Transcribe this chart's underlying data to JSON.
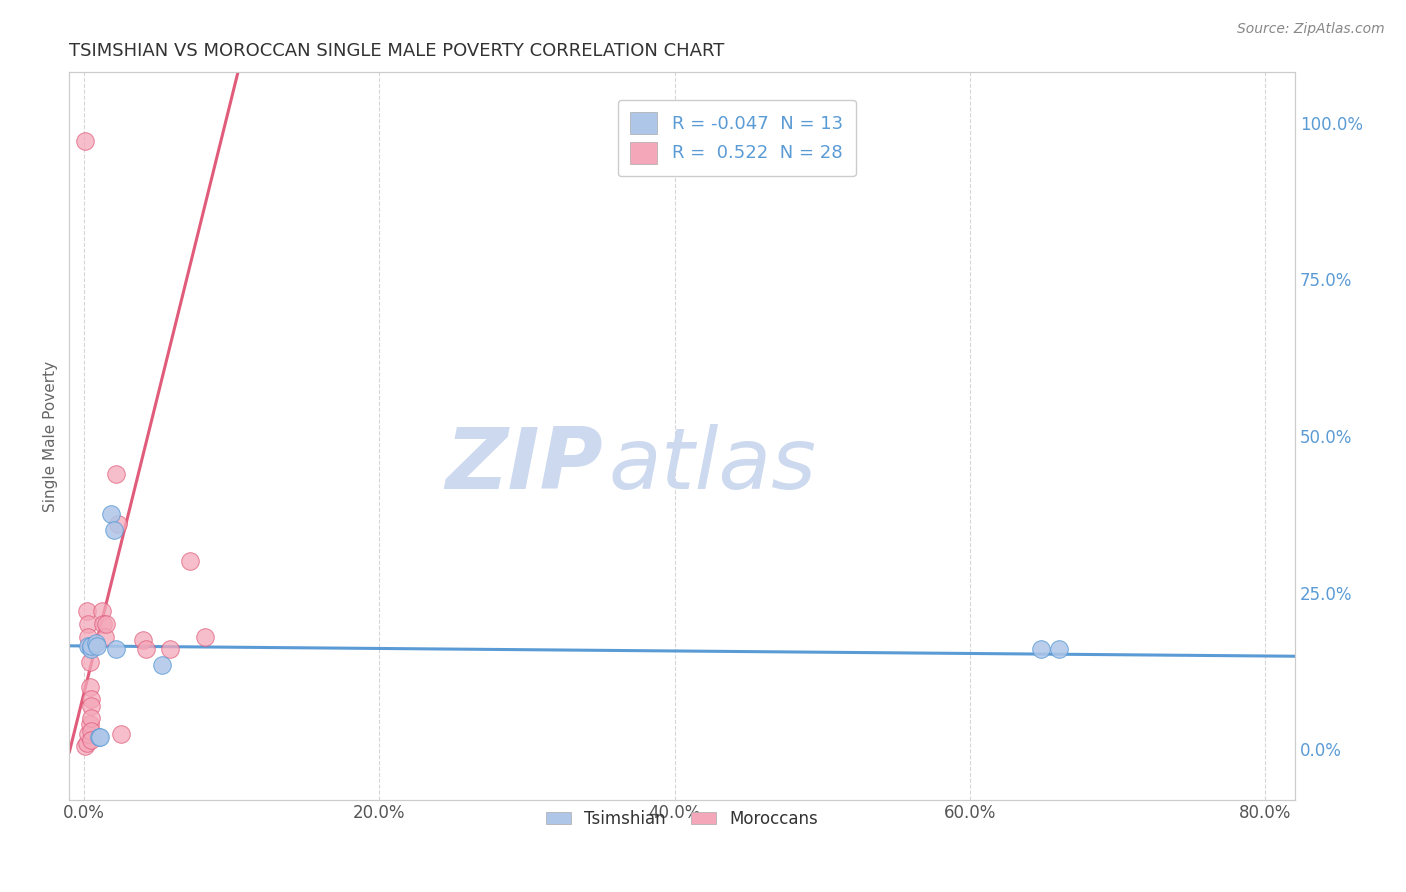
{
  "title": "TSIMSHIAN VS MOROCCAN SINGLE MALE POVERTY CORRELATION CHART",
  "source": "Source: ZipAtlas.com",
  "xlabel_ticks": [
    "0.0%",
    "20.0%",
    "40.0%",
    "60.0%",
    "80.0%"
  ],
  "xlabel_vals": [
    0.0,
    0.2,
    0.4,
    0.6,
    0.8
  ],
  "ylabel_ticks_right": [
    "100.0%",
    "75.0%",
    "50.0%",
    "25.0%",
    "0.0%"
  ],
  "ylabel_vals_right": [
    1.0,
    0.75,
    0.5,
    0.25,
    0.0
  ],
  "ylabel_label": "Single Male Poverty",
  "xlim": [
    -0.01,
    0.82
  ],
  "ylim": [
    -0.08,
    1.08
  ],
  "legend": {
    "tsimshian": {
      "R": -0.047,
      "N": 13,
      "color": "#aec6e8",
      "line_color": "#5b9bd5"
    },
    "moroccan": {
      "R": 0.522,
      "N": 28,
      "color": "#f4a7b9",
      "line_color": "#e05c7a"
    }
  },
  "tsimshian_x": [
    0.003,
    0.005,
    0.005,
    0.008,
    0.009,
    0.01,
    0.011,
    0.018,
    0.02,
    0.022,
    0.053,
    0.648,
    0.66
  ],
  "tsimshian_y": [
    0.165,
    0.16,
    0.165,
    0.17,
    0.165,
    0.02,
    0.02,
    0.375,
    0.35,
    0.16,
    0.135,
    0.16,
    0.16
  ],
  "moroccan_x": [
    0.001,
    0.001,
    0.002,
    0.002,
    0.003,
    0.003,
    0.003,
    0.004,
    0.004,
    0.004,
    0.004,
    0.005,
    0.005,
    0.005,
    0.005,
    0.005,
    0.012,
    0.013,
    0.014,
    0.015,
    0.022,
    0.023,
    0.025,
    0.04,
    0.042,
    0.058,
    0.072,
    0.082
  ],
  "moroccan_y": [
    0.97,
    0.005,
    0.22,
    0.01,
    0.2,
    0.18,
    0.025,
    0.165,
    0.14,
    0.1,
    0.04,
    0.08,
    0.07,
    0.05,
    0.03,
    0.015,
    0.22,
    0.2,
    0.18,
    0.2,
    0.44,
    0.36,
    0.025,
    0.175,
    0.16,
    0.16,
    0.3,
    0.18
  ],
  "morc_trend_slope": 9.5,
  "morc_trend_intercept": 0.09,
  "tsim_trend_slope": -0.02,
  "tsim_trend_intercept": 0.165,
  "watermark_zip": "ZIP",
  "watermark_atlas": "atlas",
  "watermark_color": "#ccd9ee",
  "bg_color": "#ffffff",
  "grid_color": "#cccccc",
  "title_color": "#333333",
  "axis_label_color": "#666666",
  "tick_color_right": "#5b9bd5",
  "tick_color_x": "#555555"
}
